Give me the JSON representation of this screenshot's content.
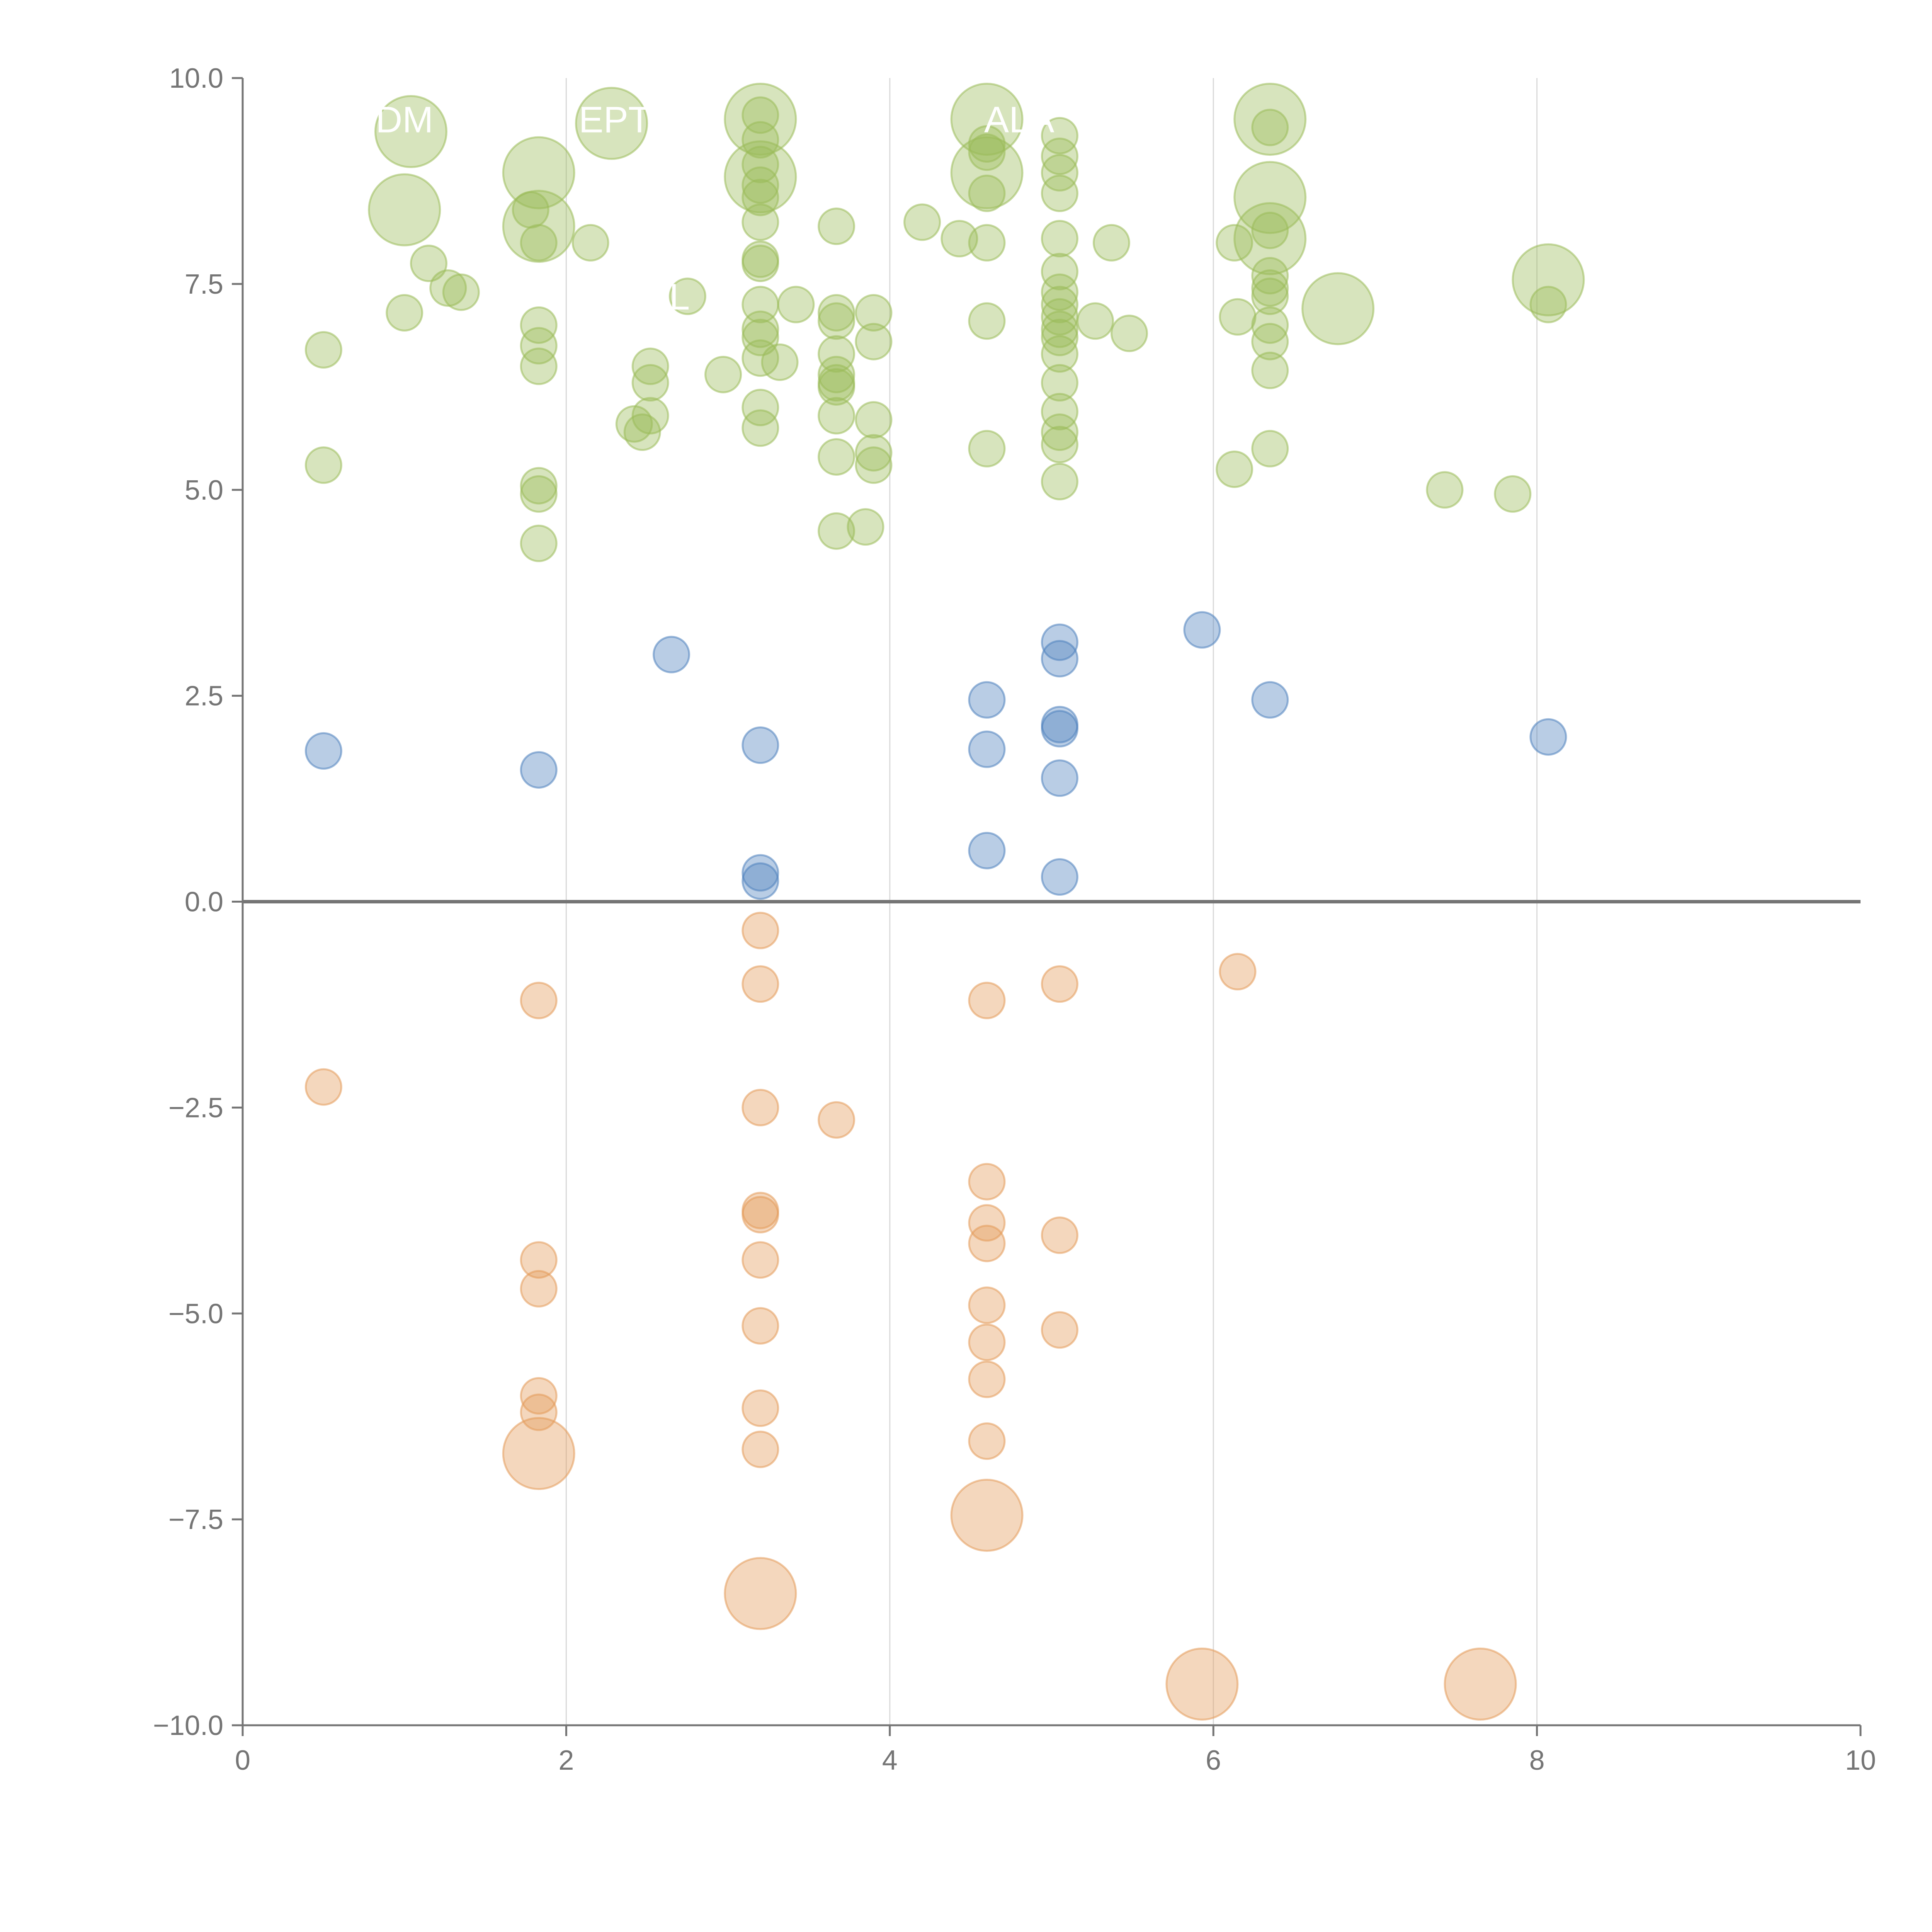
{
  "chart_data": {
    "type": "scatter",
    "title": "",
    "xlabel": "",
    "ylabel": "",
    "xlim": [
      0,
      10
    ],
    "ylim": [
      -10,
      10
    ],
    "xticks": [
      "0",
      "2",
      "4",
      "6",
      "8",
      "10"
    ],
    "yticks": [
      "10.0",
      "7.5",
      "5.0",
      "2.5",
      "0.0",
      "−2.5",
      "−5.0",
      "−7.5",
      "−10.0"
    ],
    "zero_line": 0,
    "vertical_gridlines_x": [
      2,
      4,
      6,
      8
    ],
    "colors": {
      "green": "#9BBB59",
      "blue": "#4F81BD",
      "orange": "#E49A5A",
      "axis": "#757575",
      "grid": "#d9d9d9"
    },
    "callouts": [
      {
        "text": "DM",
        "x": 1.0,
        "y": 9.5
      },
      {
        "text": "EPT",
        "x": 2.3,
        "y": 9.5
      },
      {
        "text": "ALA",
        "x": 4.8,
        "y": 9.5
      },
      {
        "text": "L",
        "x": 2.7,
        "y": 7.35
      }
    ],
    "series": [
      {
        "color": "green",
        "points": [
          [
            1.04,
            9.35,
            2
          ],
          [
            2.28,
            9.45,
            2
          ],
          [
            3.2,
            9.5,
            2
          ],
          [
            4.6,
            9.5,
            2
          ],
          [
            6.35,
            9.5,
            2
          ],
          [
            1.83,
            8.85,
            2
          ],
          [
            3.2,
            8.8,
            2
          ],
          [
            4.6,
            8.85,
            2
          ],
          [
            6.35,
            8.55,
            2
          ],
          [
            1.0,
            8.4,
            2
          ],
          [
            1.83,
            8.2,
            2
          ],
          [
            6.35,
            8.05,
            2
          ],
          [
            6.77,
            7.2,
            2
          ],
          [
            8.07,
            7.55,
            2
          ],
          [
            3.2,
            9.55,
            1
          ],
          [
            3.2,
            9.25,
            1
          ],
          [
            3.2,
            8.95,
            1
          ],
          [
            3.2,
            8.7,
            1
          ],
          [
            3.2,
            8.55,
            1
          ],
          [
            3.2,
            8.25,
            1
          ],
          [
            3.2,
            7.8,
            1
          ],
          [
            3.2,
            7.75,
            1
          ],
          [
            3.2,
            7.25,
            1
          ],
          [
            3.2,
            6.95,
            1
          ],
          [
            3.2,
            6.85,
            1
          ],
          [
            3.2,
            6.6,
            1
          ],
          [
            3.2,
            6.0,
            1
          ],
          [
            3.2,
            5.75,
            1
          ],
          [
            3.32,
            6.55,
            1
          ],
          [
            3.42,
            7.25,
            1
          ],
          [
            3.67,
            8.2,
            1
          ],
          [
            3.67,
            7.15,
            1
          ],
          [
            3.67,
            7.05,
            1
          ],
          [
            3.67,
            6.65,
            1
          ],
          [
            3.67,
            6.4,
            1
          ],
          [
            3.67,
            6.3,
            1
          ],
          [
            3.67,
            6.25,
            1
          ],
          [
            3.67,
            5.9,
            1
          ],
          [
            3.67,
            5.4,
            1
          ],
          [
            3.67,
            4.5,
            1
          ],
          [
            3.9,
            7.15,
            1
          ],
          [
            3.9,
            6.8,
            1
          ],
          [
            3.9,
            5.85,
            1
          ],
          [
            3.9,
            5.45,
            1
          ],
          [
            3.9,
            5.3,
            1
          ],
          [
            3.85,
            4.55,
            1
          ],
          [
            4.2,
            8.25,
            1
          ],
          [
            4.43,
            8.05,
            1
          ],
          [
            4.6,
            9.2,
            1
          ],
          [
            4.6,
            9.1,
            1
          ],
          [
            4.6,
            8.6,
            1
          ],
          [
            4.6,
            8.0,
            1
          ],
          [
            4.6,
            7.05,
            1
          ],
          [
            4.6,
            5.5,
            1
          ],
          [
            5.05,
            9.3,
            1
          ],
          [
            5.05,
            9.05,
            1
          ],
          [
            5.05,
            8.85,
            1
          ],
          [
            5.05,
            8.6,
            1
          ],
          [
            5.05,
            8.05,
            1
          ],
          [
            5.05,
            7.65,
            1
          ],
          [
            5.05,
            7.4,
            1
          ],
          [
            5.05,
            7.25,
            1
          ],
          [
            5.05,
            7.1,
            1
          ],
          [
            5.05,
            6.95,
            1
          ],
          [
            5.05,
            6.85,
            1
          ],
          [
            5.05,
            6.65,
            1
          ],
          [
            5.05,
            6.3,
            1
          ],
          [
            5.05,
            5.95,
            1
          ],
          [
            5.05,
            5.7,
            1
          ],
          [
            5.05,
            5.55,
            1
          ],
          [
            5.05,
            5.1,
            1
          ],
          [
            5.27,
            7.05,
            1
          ],
          [
            5.37,
            8.0,
            1
          ],
          [
            5.48,
            6.9,
            1
          ],
          [
            6.13,
            8.0,
            1
          ],
          [
            6.15,
            7.1,
            1
          ],
          [
            6.13,
            5.25,
            1
          ],
          [
            6.35,
            9.4,
            1
          ],
          [
            6.35,
            8.15,
            1
          ],
          [
            6.35,
            7.6,
            1
          ],
          [
            6.35,
            7.45,
            1
          ],
          [
            6.35,
            7.35,
            1
          ],
          [
            6.35,
            7.0,
            1
          ],
          [
            6.35,
            6.8,
            1
          ],
          [
            6.35,
            6.45,
            1
          ],
          [
            6.35,
            5.5,
            1
          ],
          [
            7.43,
            5.0,
            1
          ],
          [
            7.85,
            4.95,
            1
          ],
          [
            8.07,
            7.25,
            1
          ],
          [
            0.5,
            6.7,
            1
          ],
          [
            0.5,
            5.3,
            1
          ],
          [
            1.0,
            7.15,
            1
          ],
          [
            1.15,
            7.75,
            1
          ],
          [
            1.27,
            7.45,
            1
          ],
          [
            1.35,
            7.4,
            1
          ],
          [
            1.78,
            8.4,
            1
          ],
          [
            1.83,
            8.0,
            1
          ],
          [
            1.83,
            7.0,
            1
          ],
          [
            1.83,
            6.75,
            1
          ],
          [
            1.83,
            6.5,
            1
          ],
          [
            1.83,
            5.05,
            1
          ],
          [
            1.83,
            4.95,
            1
          ],
          [
            1.83,
            4.35,
            1
          ],
          [
            2.15,
            8.0,
            1
          ],
          [
            2.42,
            5.8,
            1
          ],
          [
            2.47,
            5.7,
            1
          ],
          [
            2.52,
            6.5,
            1
          ],
          [
            2.52,
            6.3,
            1
          ],
          [
            2.52,
            5.9,
            1
          ],
          [
            2.75,
            7.35,
            1
          ],
          [
            2.97,
            6.4,
            1
          ]
        ]
      },
      {
        "color": "blue",
        "points": [
          [
            0.5,
            1.83,
            1
          ],
          [
            1.83,
            1.6,
            1
          ],
          [
            2.65,
            3.0,
            1
          ],
          [
            3.2,
            1.9,
            1
          ],
          [
            3.2,
            0.35,
            1
          ],
          [
            3.2,
            0.25,
            1
          ],
          [
            4.6,
            2.45,
            1
          ],
          [
            4.6,
            1.85,
            1
          ],
          [
            4.6,
            0.62,
            1
          ],
          [
            5.05,
            3.15,
            1
          ],
          [
            5.05,
            2.95,
            1
          ],
          [
            5.05,
            2.15,
            1
          ],
          [
            5.05,
            2.1,
            1
          ],
          [
            5.05,
            1.5,
            1
          ],
          [
            5.05,
            0.3,
            1
          ],
          [
            5.93,
            3.3,
            1
          ],
          [
            6.35,
            2.45,
            1
          ],
          [
            8.07,
            2.0,
            1
          ]
        ]
      },
      {
        "color": "orange",
        "points": [
          [
            0.5,
            -2.25,
            1
          ],
          [
            1.83,
            -1.2,
            1
          ],
          [
            1.83,
            -4.35,
            1
          ],
          [
            1.83,
            -4.7,
            1
          ],
          [
            1.83,
            -6.0,
            1
          ],
          [
            1.83,
            -6.2,
            1
          ],
          [
            1.83,
            -6.7,
            2
          ],
          [
            3.2,
            -0.35,
            1
          ],
          [
            3.2,
            -1.0,
            1
          ],
          [
            3.2,
            -2.5,
            1
          ],
          [
            3.2,
            -3.75,
            1
          ],
          [
            3.2,
            -3.8,
            1
          ],
          [
            3.2,
            -4.35,
            1
          ],
          [
            3.2,
            -5.15,
            1
          ],
          [
            3.2,
            -6.15,
            1
          ],
          [
            3.2,
            -6.65,
            1
          ],
          [
            3.2,
            -8.4,
            2
          ],
          [
            3.67,
            -2.65,
            1
          ],
          [
            4.6,
            -1.2,
            1
          ],
          [
            4.6,
            -3.4,
            1
          ],
          [
            4.6,
            -3.9,
            1
          ],
          [
            4.6,
            -4.15,
            1
          ],
          [
            4.6,
            -4.9,
            1
          ],
          [
            4.6,
            -5.35,
            1
          ],
          [
            4.6,
            -5.8,
            1
          ],
          [
            4.6,
            -6.55,
            1
          ],
          [
            4.6,
            -7.45,
            2
          ],
          [
            5.05,
            -1.0,
            1
          ],
          [
            5.05,
            -4.05,
            1
          ],
          [
            5.05,
            -5.2,
            1
          ],
          [
            5.93,
            -9.5,
            2
          ],
          [
            6.15,
            -0.85,
            1
          ],
          [
            7.65,
            -9.5,
            2
          ]
        ]
      }
    ]
  }
}
